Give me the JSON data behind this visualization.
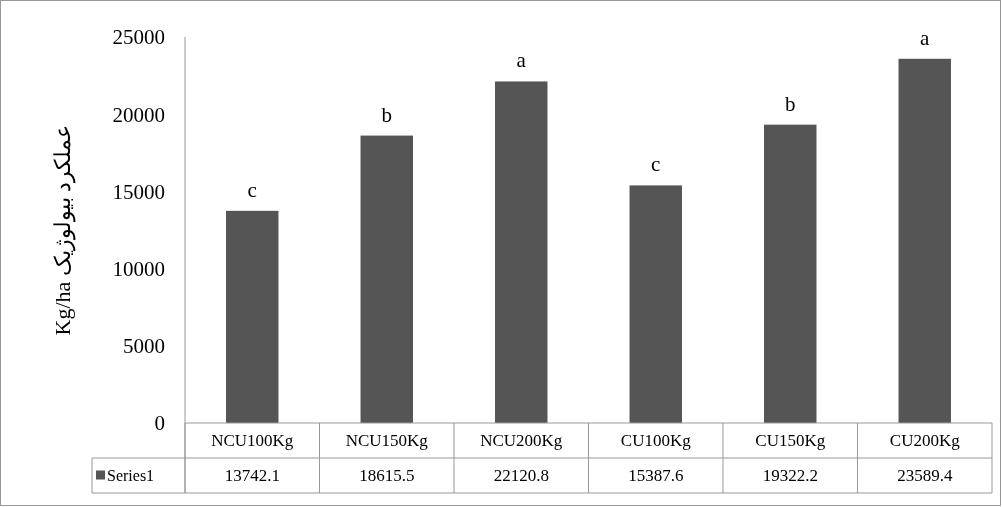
{
  "chart_data": {
    "type": "bar",
    "ylabel": "Kg/ha عملکرد بیولوژیک",
    "categories": [
      "NCU100Kg",
      "NCU150Kg",
      "NCU200Kg",
      "CU100Kg",
      "CU150Kg",
      "CU200Kg"
    ],
    "series": [
      {
        "name": "Series1",
        "color": "#555555",
        "values": [
          13742.1,
          18615.5,
          22120.8,
          15387.6,
          19322.2,
          23589.4
        ]
      }
    ],
    "ylim": [
      0,
      25000
    ],
    "yticks": [
      0,
      5000,
      10000,
      15000,
      20000,
      25000
    ],
    "data_labels": true,
    "annotations": [
      {
        "text": "c",
        "x": "NCU100Kg",
        "y": 13742.1
      },
      {
        "text": "b",
        "x": "NCU150Kg",
        "y": 18615.5
      },
      {
        "text": "a",
        "x": "NCU200Kg",
        "y": 22120.8
      },
      {
        "text": "c",
        "x": "CU100Kg",
        "y": 15387.6
      },
      {
        "text": "b",
        "x": "CU150Kg",
        "y": 19322.2
      },
      {
        "text": "a",
        "x": "CU200Kg",
        "y": 23589.4
      }
    ]
  }
}
